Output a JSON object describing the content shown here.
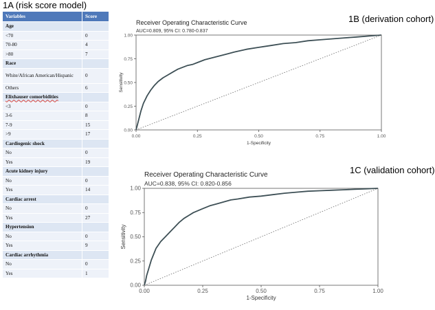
{
  "panels": {
    "a_title": "1A (risk score model)",
    "b_title": "1B (derivation cohort)",
    "c_title": "1C (validation cohort)"
  },
  "table": {
    "headers": [
      "Variables",
      "Score"
    ],
    "groups": [
      {
        "name": "Age",
        "rows": [
          {
            "label": "<70",
            "score": "0"
          },
          {
            "label": "70-80",
            "score": "4"
          },
          {
            "label": ">80",
            "score": "7"
          }
        ]
      },
      {
        "name": "Race",
        "rows": [
          {
            "label": "White/African American/Hispanic",
            "score": "0"
          },
          {
            "label": "Others",
            "score": "6"
          }
        ]
      },
      {
        "name": "Elixhauser comorbidities",
        "rows": [
          {
            "label": "<3",
            "score": "0"
          },
          {
            "label": "3-6",
            "score": "8"
          },
          {
            "label": "7-9",
            "score": "15"
          },
          {
            "label": ">9",
            "score": "17"
          }
        ]
      },
      {
        "name": "Cardiogenic shock",
        "rows": [
          {
            "label": "No",
            "score": "0"
          },
          {
            "label": "Yes",
            "score": "19"
          }
        ]
      },
      {
        "name": "Acute kidney injury",
        "rows": [
          {
            "label": "No",
            "score": "0"
          },
          {
            "label": "Yes",
            "score": "14"
          }
        ]
      },
      {
        "name": "Cardiac arrest",
        "rows": [
          {
            "label": "No",
            "score": "0"
          },
          {
            "label": "Yes",
            "score": "27"
          }
        ]
      },
      {
        "name": "Hypertension",
        "rows": [
          {
            "label": "No",
            "score": "0"
          },
          {
            "label": "Yes",
            "score": "9"
          }
        ]
      },
      {
        "name": "Cardiac arrhythmia",
        "rows": [
          {
            "label": "No",
            "score": "0"
          },
          {
            "label": "Yes",
            "score": "1"
          }
        ]
      }
    ]
  },
  "chart_data": [
    {
      "type": "line",
      "title": "Receiver Operating Characteristic Curve",
      "subtitle": "AUC=0.809, 95% CI: 0.780-0.837",
      "xlabel": "1-Specificity",
      "ylabel": "Sensitivity",
      "xlim": [
        0,
        1
      ],
      "ylim": [
        0,
        1
      ],
      "ticks": [
        "0.00",
        "0.25",
        "0.50",
        "0.75",
        "1.00"
      ],
      "series": [
        {
          "name": "ROC",
          "x": [
            0,
            0.005,
            0.012,
            0.02,
            0.03,
            0.045,
            0.06,
            0.075,
            0.09,
            0.11,
            0.13,
            0.15,
            0.17,
            0.19,
            0.21,
            0.23,
            0.25,
            0.28,
            0.31,
            0.34,
            0.37,
            0.4,
            0.45,
            0.5,
            0.55,
            0.6,
            0.65,
            0.7,
            0.75,
            0.8,
            0.85,
            0.9,
            0.95,
            1.0
          ],
          "y": [
            0,
            0.05,
            0.12,
            0.2,
            0.28,
            0.36,
            0.42,
            0.47,
            0.51,
            0.55,
            0.58,
            0.61,
            0.64,
            0.66,
            0.68,
            0.69,
            0.71,
            0.74,
            0.76,
            0.78,
            0.8,
            0.82,
            0.85,
            0.87,
            0.89,
            0.91,
            0.92,
            0.94,
            0.95,
            0.96,
            0.97,
            0.98,
            0.99,
            1.0
          ]
        },
        {
          "name": "Reference",
          "x": [
            0,
            1
          ],
          "y": [
            0,
            1
          ]
        }
      ]
    },
    {
      "type": "line",
      "title": "Receiver Operating Characteristic Curve",
      "subtitle": "AUC=0.838, 95% CI: 0.820-0.856",
      "xlabel": "1-Specificity",
      "ylabel": "Sensitivity",
      "xlim": [
        0,
        1
      ],
      "ylim": [
        0,
        1
      ],
      "ticks": [
        "0.00",
        "0.25",
        "0.50",
        "0.75",
        "1.00"
      ],
      "series": [
        {
          "name": "ROC",
          "x": [
            0,
            0.005,
            0.01,
            0.02,
            0.03,
            0.04,
            0.05,
            0.07,
            0.09,
            0.11,
            0.13,
            0.15,
            0.17,
            0.19,
            0.21,
            0.23,
            0.25,
            0.28,
            0.31,
            0.34,
            0.37,
            0.4,
            0.45,
            0.5,
            0.55,
            0.6,
            0.65,
            0.7,
            0.75,
            0.8,
            0.85,
            0.9,
            0.95,
            1.0
          ],
          "y": [
            0,
            0.04,
            0.1,
            0.18,
            0.26,
            0.32,
            0.38,
            0.45,
            0.5,
            0.55,
            0.6,
            0.65,
            0.69,
            0.72,
            0.75,
            0.77,
            0.79,
            0.82,
            0.84,
            0.86,
            0.88,
            0.89,
            0.91,
            0.92,
            0.935,
            0.95,
            0.96,
            0.97,
            0.975,
            0.98,
            0.985,
            0.99,
            0.995,
            1.0
          ]
        },
        {
          "name": "Reference",
          "x": [
            0,
            1
          ],
          "y": [
            0,
            1
          ]
        }
      ]
    }
  ]
}
